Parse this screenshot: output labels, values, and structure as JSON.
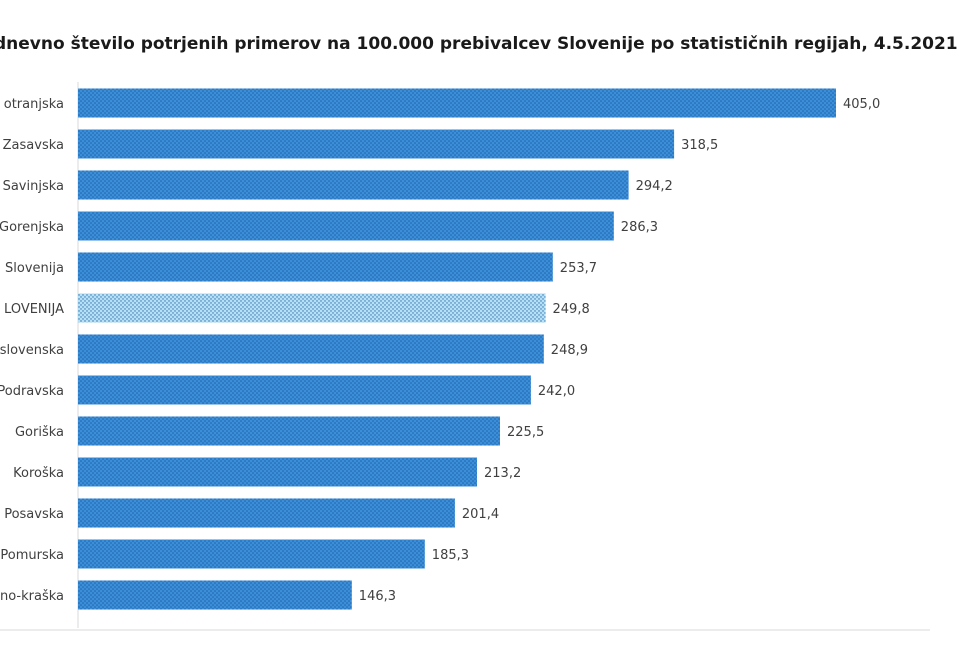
{
  "chart_data": {
    "type": "bar",
    "orientation": "horizontal",
    "title": "dnevno število potrjenih primerov na 100.000  prebivalcev Slovenije po statističnih regijah, 4.5.2021",
    "categories": [
      "otranjska",
      "Zasavska",
      "Savinjska",
      "Gorenjska",
      "Slovenija",
      "LOVENIJA",
      "slovenska",
      "Podravska",
      "Goriška",
      "Koroška",
      "Posavska",
      "Pomurska",
      "no-kraška"
    ],
    "values": [
      405.0,
      318.5,
      294.2,
      286.3,
      253.7,
      249.8,
      248.9,
      242.0,
      225.5,
      213.2,
      201.4,
      185.3,
      146.3
    ],
    "value_labels": [
      "405,0",
      "318,5",
      "294,2",
      "286,3",
      "253,7",
      "249,8",
      "248,9",
      "242,0",
      "225,5",
      "213,2",
      "201,4",
      "185,3",
      "146,3"
    ],
    "highlight_index": 5,
    "xlim": [
      0,
      405
    ],
    "grid": false,
    "legend": "none",
    "colors": {
      "bar": "#3a8fd8",
      "bar_dots": "#1e5fa6",
      "highlight": "#b6e0f3",
      "highlight_dots": "#2d6fb0",
      "axis": "#d9d9d9",
      "text": "#404040"
    }
  }
}
